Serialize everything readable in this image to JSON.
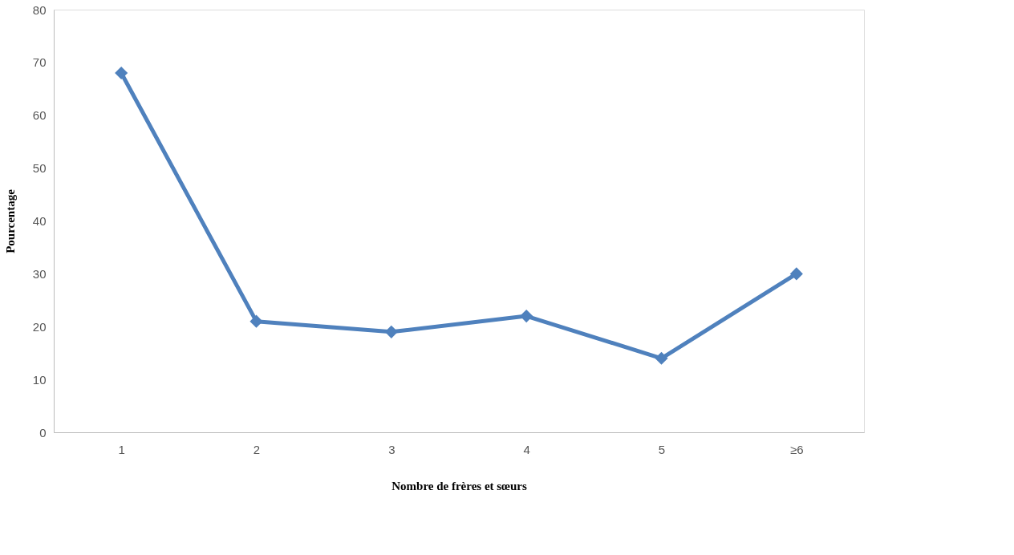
{
  "chart_data": {
    "type": "line",
    "xlabel": "Nombre de frères et sœurs",
    "ylabel": "Pourcentage",
    "categories": [
      "1",
      "2",
      "3",
      "4",
      "5",
      "≥6"
    ],
    "series": [
      {
        "color": "#4f81bd",
        "values": [
          68,
          21,
          19,
          22,
          14,
          30
        ]
      }
    ],
    "ylim": [
      0,
      80
    ],
    "yticks": [
      0,
      10,
      20,
      30,
      40,
      50,
      60,
      70,
      80
    ],
    "grid": false,
    "legend": false,
    "marker": "diamond",
    "line_style": "solid"
  }
}
